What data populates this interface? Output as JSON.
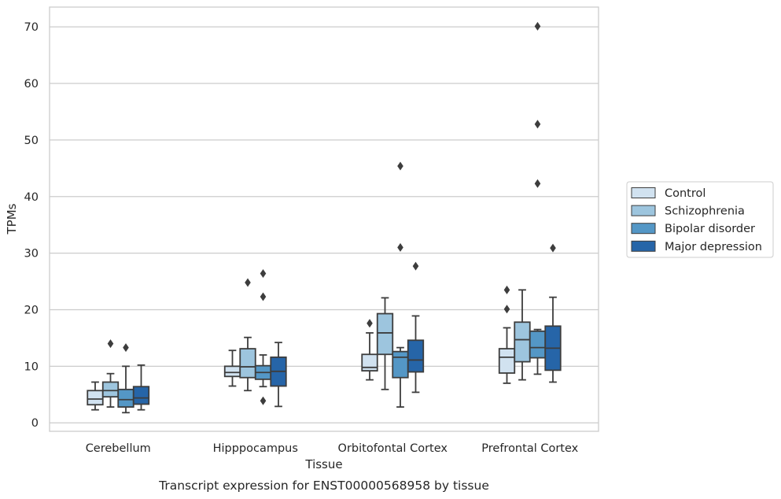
{
  "chart_data": {
    "type": "box",
    "ylabel": "TPMs",
    "xlabel": "Tissue",
    "caption": "Transcript expression for ENST00000568958 by tissue",
    "ylim": [
      -1.5,
      73.5
    ],
    "yticks": [
      0,
      10,
      20,
      30,
      40,
      50,
      60,
      70
    ],
    "grid": "horizontal",
    "legend_position": "right",
    "categories": [
      "Cerebellum",
      "Hipppocampus",
      "Orbitofontal Cortex",
      "Prefrontal Cortex"
    ],
    "series": [
      {
        "name": "Control",
        "color": "#d1e2f0",
        "boxes": [
          {
            "whislo": 2.3,
            "q1": 3.2,
            "med": 4.2,
            "q3": 5.7,
            "whishi": 7.2,
            "fliers": []
          },
          {
            "whislo": 6.5,
            "q1": 8.2,
            "med": 8.9,
            "q3": 10.0,
            "whishi": 12.8,
            "fliers": []
          },
          {
            "whislo": 7.6,
            "q1": 9.2,
            "med": 9.8,
            "q3": 12.1,
            "whishi": 15.9,
            "fliers": [
              17.6
            ]
          },
          {
            "whislo": 7.0,
            "q1": 8.8,
            "med": 11.6,
            "q3": 13.1,
            "whishi": 16.8,
            "fliers": [
              20.1,
              23.5
            ]
          }
        ]
      },
      {
        "name": "Schizophrenia",
        "color": "#9dc5de",
        "boxes": [
          {
            "whislo": 2.8,
            "q1": 4.6,
            "med": 5.7,
            "q3": 7.2,
            "whishi": 8.7,
            "fliers": [
              14.0
            ]
          },
          {
            "whislo": 5.7,
            "q1": 8.0,
            "med": 9.9,
            "q3": 13.1,
            "whishi": 15.1,
            "fliers": [
              24.8
            ]
          },
          {
            "whislo": 5.9,
            "q1": 12.1,
            "med": 15.9,
            "q3": 19.3,
            "whishi": 22.1,
            "fliers": []
          },
          {
            "whislo": 7.6,
            "q1": 10.8,
            "med": 14.7,
            "q3": 17.8,
            "whishi": 23.5,
            "fliers": []
          }
        ]
      },
      {
        "name": "Bipolar disorder",
        "color": "#5497c6",
        "boxes": [
          {
            "whislo": 1.8,
            "q1": 2.8,
            "med": 4.1,
            "q3": 5.9,
            "whishi": 10.0,
            "fliers": [
              13.3
            ]
          },
          {
            "whislo": 6.4,
            "q1": 7.7,
            "med": 8.9,
            "q3": 10.1,
            "whishi": 12.0,
            "fliers": [
              3.9,
              22.3,
              26.4
            ]
          },
          {
            "whislo": 2.8,
            "q1": 8.0,
            "med": 11.6,
            "q3": 12.6,
            "whishi": 13.3,
            "fliers": [
              31.0,
              45.4
            ]
          },
          {
            "whislo": 8.6,
            "q1": 11.5,
            "med": 13.3,
            "q3": 16.2,
            "whishi": 16.5,
            "fliers": [
              42.3,
              52.8,
              70.1
            ]
          }
        ]
      },
      {
        "name": "Major depression",
        "color": "#2665a8",
        "boxes": [
          {
            "whislo": 2.3,
            "q1": 3.3,
            "med": 4.4,
            "q3": 6.4,
            "whishi": 10.2,
            "fliers": []
          },
          {
            "whislo": 2.9,
            "q1": 6.5,
            "med": 9.1,
            "q3": 11.6,
            "whishi": 14.2,
            "fliers": []
          },
          {
            "whislo": 5.4,
            "q1": 9.0,
            "med": 11.1,
            "q3": 14.6,
            "whishi": 18.9,
            "fliers": [
              27.7
            ]
          },
          {
            "whislo": 7.2,
            "q1": 9.3,
            "med": 13.2,
            "q3": 17.1,
            "whishi": 22.2,
            "fliers": [
              30.9
            ]
          }
        ]
      }
    ]
  }
}
